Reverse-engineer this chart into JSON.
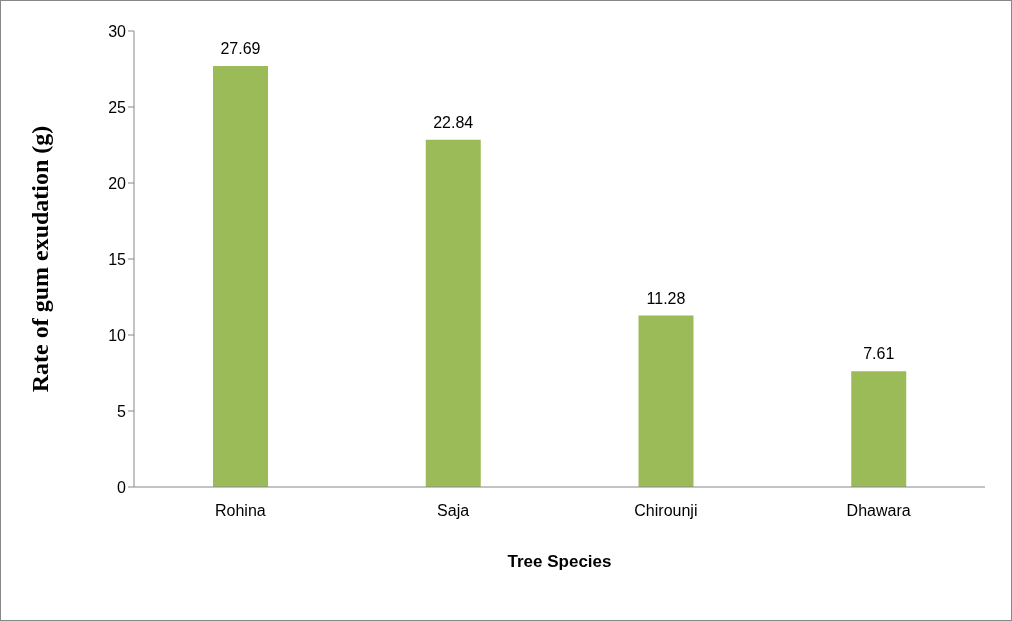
{
  "chart_data": {
    "type": "bar",
    "xlabel": "Tree Species",
    "ylabel": "Rate of gum exudation (g)",
    "categories": [
      "Rohina",
      "Saja",
      "Chirounji",
      "Dhawara"
    ],
    "values": [
      27.69,
      22.84,
      11.28,
      7.61
    ],
    "color": "#9bbb59",
    "ylim": [
      0,
      30
    ],
    "yticks": [
      0,
      5,
      10,
      15,
      20,
      25,
      30
    ],
    "grid": false,
    "data_labels": true
  }
}
